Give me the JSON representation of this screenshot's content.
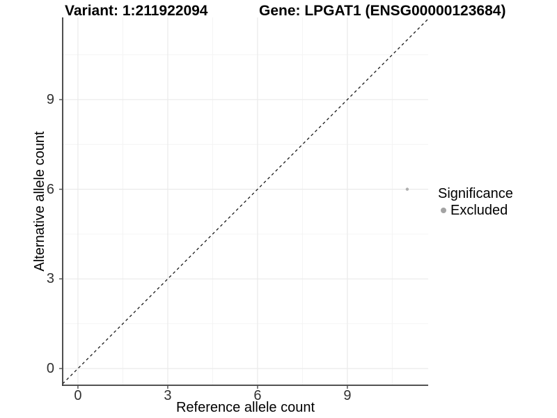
{
  "header": {
    "variant_title": "Variant: 1:211922094",
    "gene_title": "Gene: LPGAT1 (ENSG00000123684)"
  },
  "chart_data": {
    "type": "scatter",
    "xlabel": "Reference allele count",
    "ylabel": "Alternative allele count",
    "x_ticks": [
      0,
      3,
      6,
      9
    ],
    "y_ticks": [
      0,
      3,
      6,
      9
    ],
    "x_minor_ticks": [
      1.5,
      4.5,
      7.5,
      10.5
    ],
    "y_minor_ticks": [
      1.5,
      4.5,
      7.5,
      10.5
    ],
    "xlim": [
      -0.51,
      11.7
    ],
    "ylim": [
      -0.56,
      11.75
    ],
    "grid": true,
    "reference_line": {
      "type": "identity y=x",
      "style": "dashed",
      "color": "#1a1a1a"
    },
    "series": [
      {
        "name": "Excluded",
        "color": "#aeaeae",
        "points": [
          {
            "x": 11,
            "y": 6
          }
        ]
      }
    ],
    "legend": {
      "title": "Significance",
      "position": "right",
      "entries": [
        {
          "label": "Excluded",
          "color": "#a3a3a3"
        }
      ]
    }
  },
  "colors": {
    "background": "#ffffff",
    "axis_line": "#3a3a3a",
    "tick_mark": "#4d4d4d",
    "grid_major": "#eaeaea",
    "grid_minor": "#f4f4f4",
    "tick_label": "#303030",
    "title_text": "#000000"
  }
}
